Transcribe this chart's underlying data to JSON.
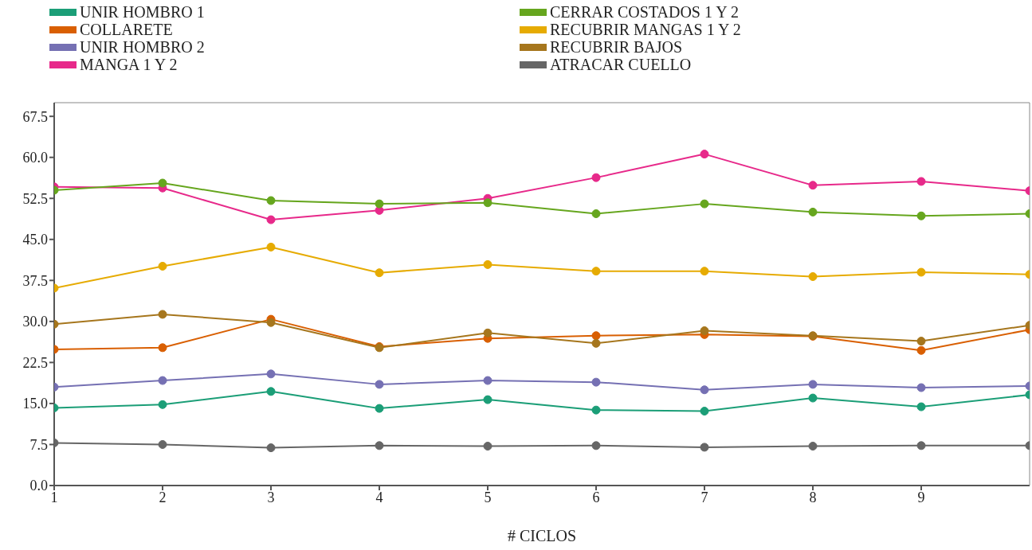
{
  "chart_data": {
    "type": "line",
    "xlabel": "# CICLOS",
    "x": [
      1,
      2,
      3,
      4,
      5,
      6,
      7,
      8,
      9,
      10
    ],
    "xlim": [
      1,
      10
    ],
    "xticks": [
      1,
      2,
      3,
      4,
      5,
      6,
      7,
      8,
      9
    ],
    "ylim": [
      0,
      70
    ],
    "yticks": [
      {
        "value": 0,
        "label": "0.0"
      },
      7.5,
      {
        "value": 15,
        "label": "15.0"
      },
      22.5,
      {
        "value": 30,
        "label": "30.0"
      },
      37.5,
      {
        "value": 45,
        "label": "45.0"
      },
      52.5,
      {
        "value": 60,
        "label": "60.0"
      },
      67.5
    ],
    "legend": "top",
    "marker": "circle",
    "line_style": "solid",
    "series": [
      {
        "name": "UNIR HOMBRO 1",
        "color": "#1b9e77",
        "values": [
          14.2,
          14.8,
          17.2,
          14.1,
          15.7,
          13.8,
          13.6,
          16.0,
          14.4,
          16.6
        ]
      },
      {
        "name": "COLLARETE",
        "color": "#d95f02",
        "values": [
          24.9,
          25.2,
          30.4,
          25.4,
          26.9,
          27.4,
          27.6,
          27.3,
          24.7,
          28.5
        ]
      },
      {
        "name": "UNIR HOMBRO 2",
        "color": "#7570b3",
        "values": [
          18.0,
          19.2,
          20.4,
          18.5,
          19.2,
          18.9,
          17.5,
          18.5,
          17.9,
          18.2
        ]
      },
      {
        "name": "MANGA 1 Y 2",
        "color": "#e7298a",
        "values": [
          54.6,
          54.4,
          48.6,
          50.3,
          52.5,
          56.3,
          60.6,
          54.9,
          55.6,
          53.9
        ]
      },
      {
        "name": "CERRAR COSTADOS 1 Y 2",
        "color": "#66a61e",
        "values": [
          54.0,
          55.3,
          52.1,
          51.5,
          51.7,
          49.7,
          51.5,
          50.0,
          49.3,
          49.7
        ]
      },
      {
        "name": "RECUBRIR MANGAS 1 Y 2",
        "color": "#e6ab02",
        "values": [
          36.1,
          40.1,
          43.6,
          38.9,
          40.4,
          39.2,
          39.2,
          38.2,
          39.0,
          38.6
        ]
      },
      {
        "name": "RECUBRIR BAJOS",
        "color": "#a6761d",
        "values": [
          29.5,
          31.3,
          29.8,
          25.2,
          27.9,
          26.0,
          28.3,
          27.4,
          26.4,
          29.3
        ]
      },
      {
        "name": "ATRACAR CUELLO",
        "color": "#666666",
        "values": [
          7.8,
          7.5,
          6.9,
          7.3,
          7.2,
          7.3,
          7.0,
          7.2,
          7.3,
          7.3
        ]
      }
    ]
  }
}
